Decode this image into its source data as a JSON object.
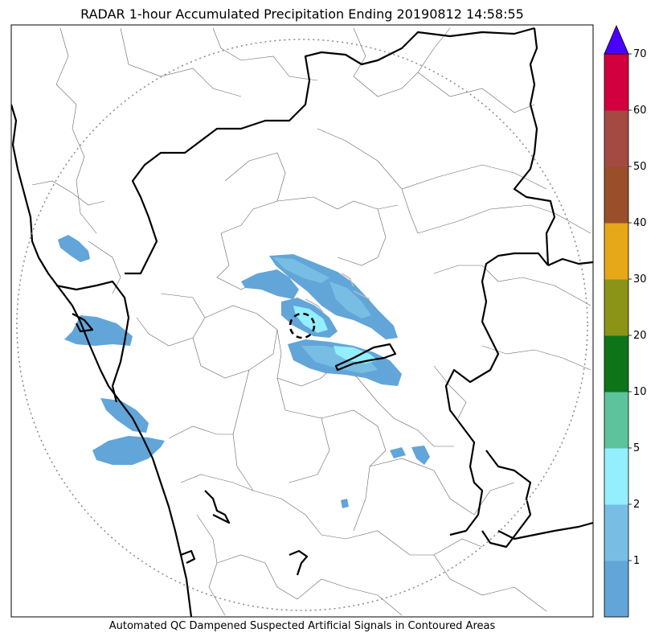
{
  "title": "RADAR 1-hour Accumulated Precipitation Ending 20190812 14:58:55",
  "caption": "Automated QC Dampened Suspected Artificial Signals in Contoured Areas",
  "colorbar": {
    "unit": "",
    "extend": "max",
    "overflow_color": "#4b00ff",
    "bands": [
      {
        "from": 0,
        "to": 1,
        "color": "#62a5d8"
      },
      {
        "from": 1,
        "to": 2,
        "color": "#78bde3"
      },
      {
        "from": 2,
        "to": 5,
        "color": "#93eefd"
      },
      {
        "from": 5,
        "to": 10,
        "color": "#5cc39c"
      },
      {
        "from": 10,
        "to": 20,
        "color": "#0d7518"
      },
      {
        "from": 20,
        "to": 30,
        "color": "#8c9417"
      },
      {
        "from": 30,
        "to": 40,
        "color": "#e6a718"
      },
      {
        "from": 40,
        "to": 50,
        "color": "#9a4f2a"
      },
      {
        "from": 50,
        "to": 60,
        "color": "#a44a43"
      },
      {
        "from": 60,
        "to": 70,
        "color": "#d2003e"
      }
    ],
    "tick_labels": [
      "1",
      "2",
      "5",
      "10",
      "20",
      "30",
      "40",
      "50",
      "60",
      "70"
    ]
  },
  "map": {
    "range_ring": "dotted",
    "radar_site_marker": "dashed-circle",
    "colors": {
      "coast": "#000000",
      "district_boundaries": "#666666",
      "ring": "#888888",
      "qc_contours": "#bbbbbb"
    }
  }
}
